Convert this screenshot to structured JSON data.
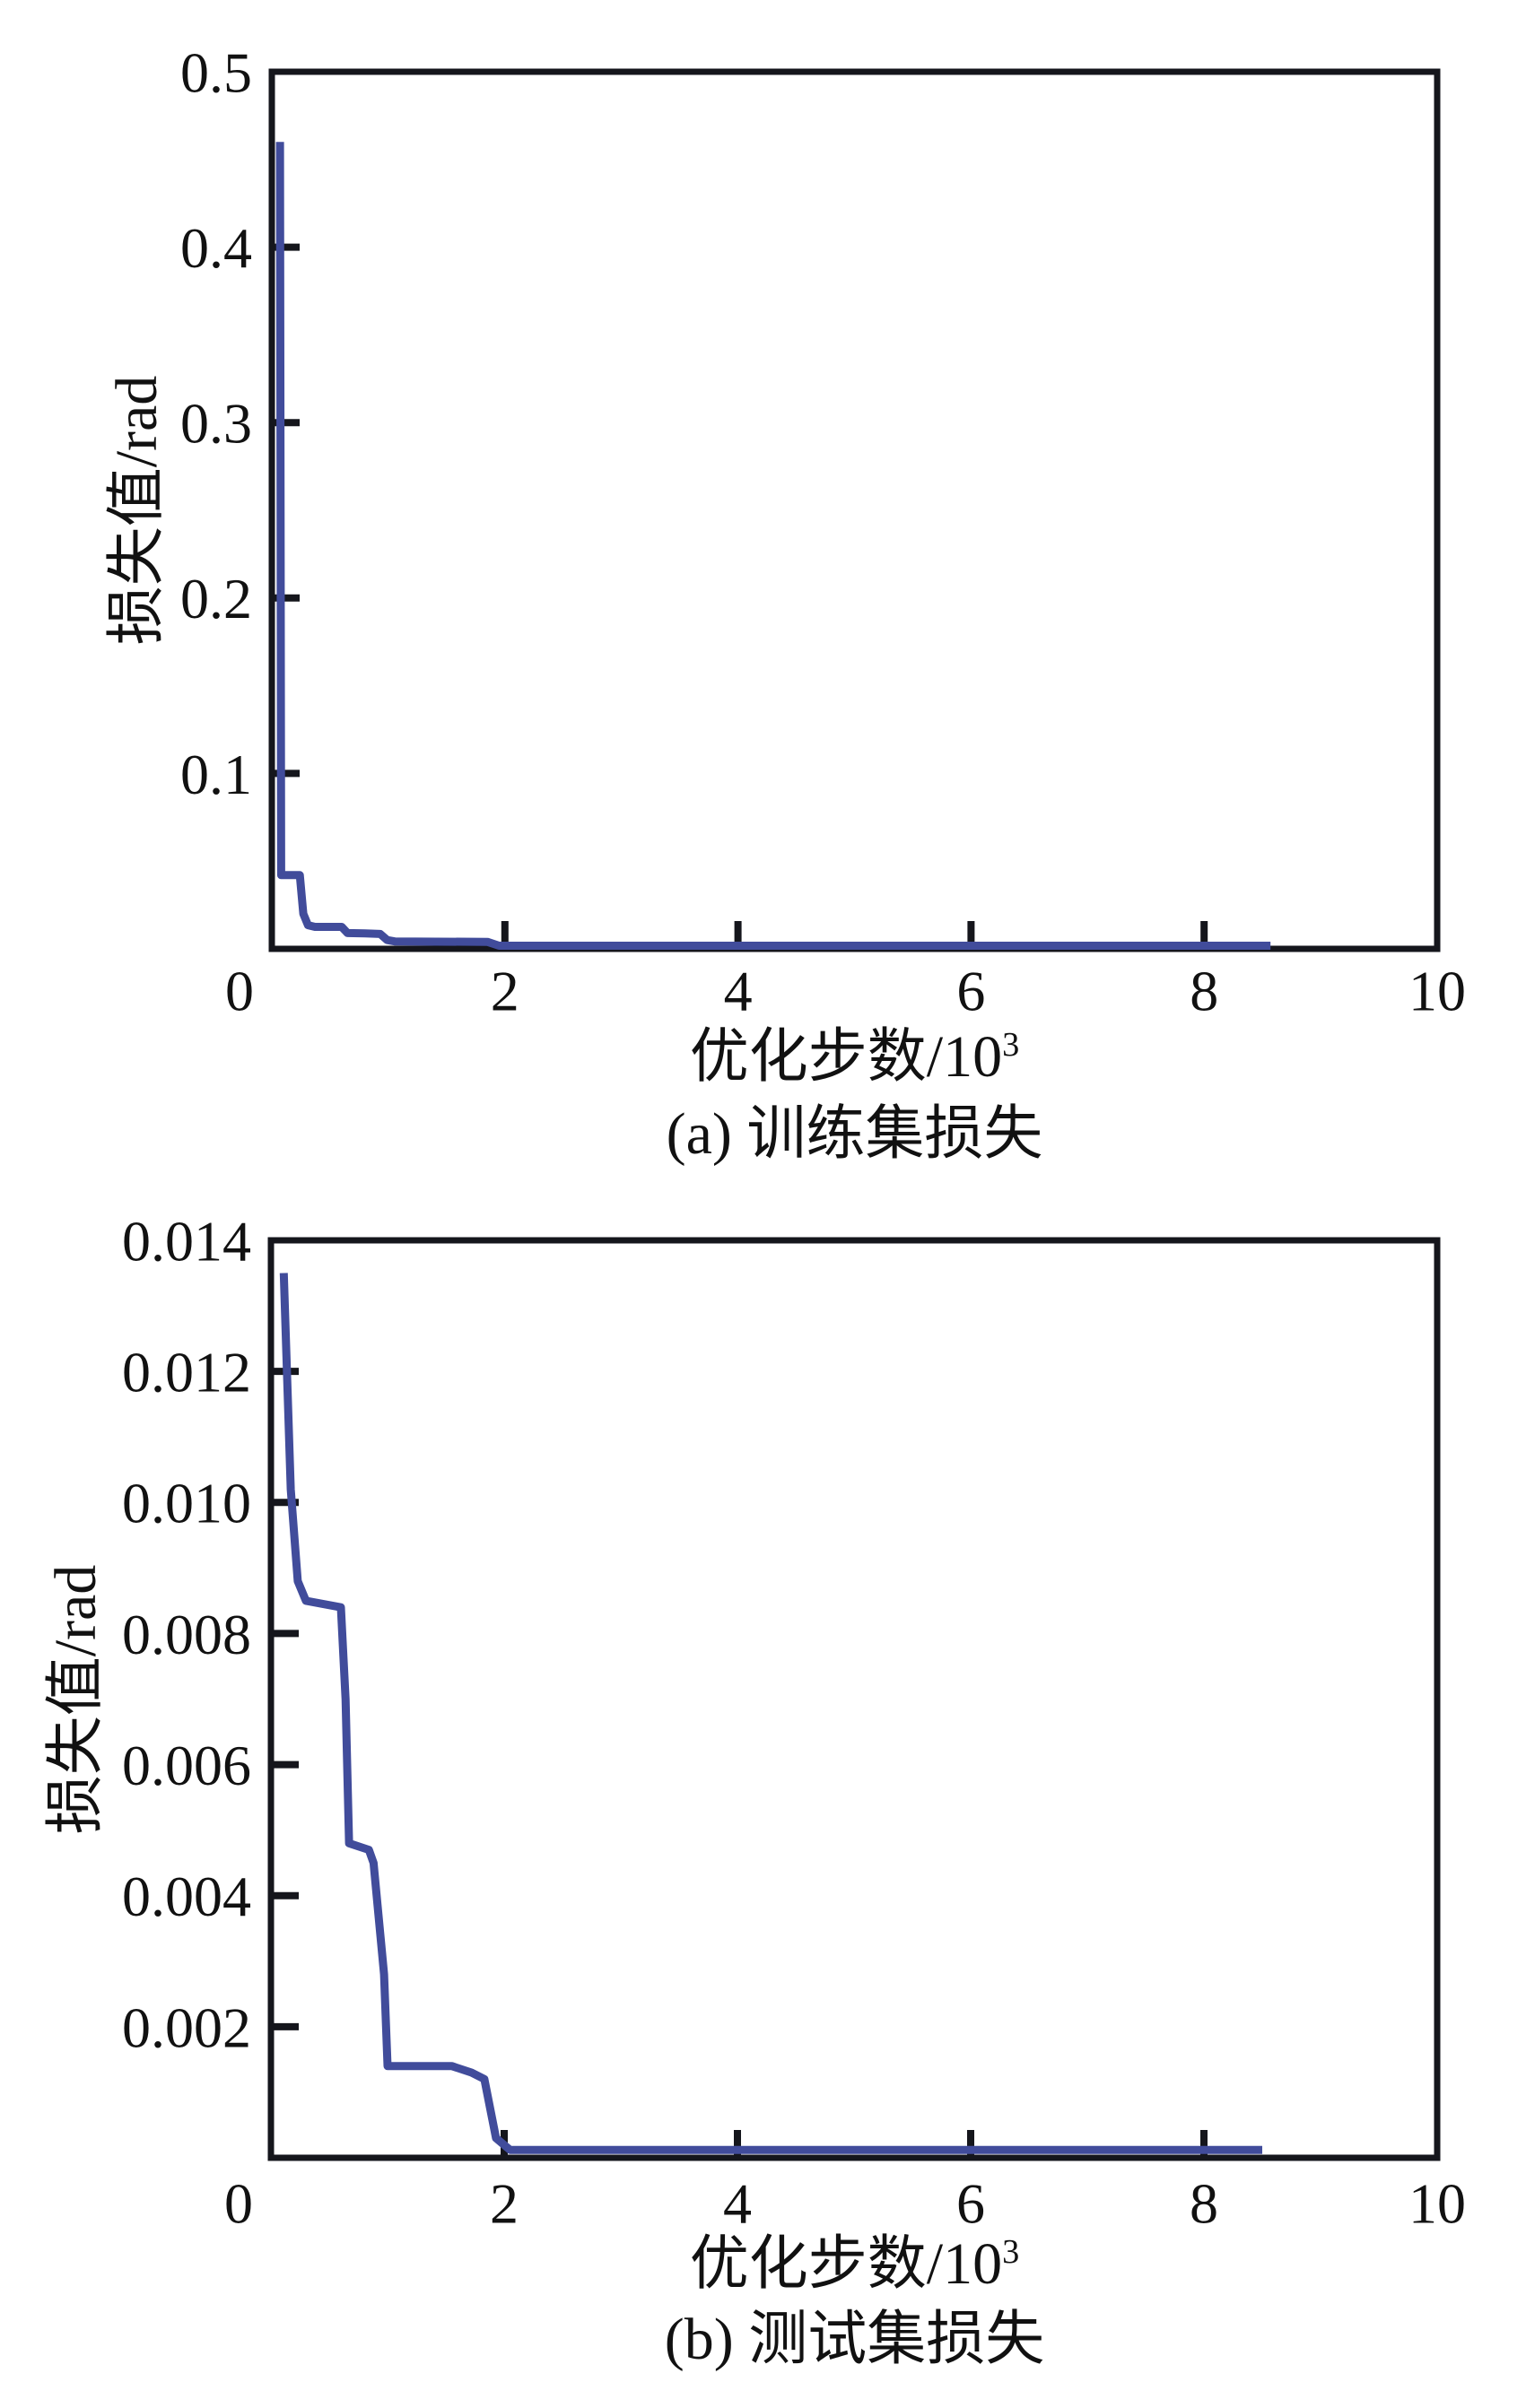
{
  "figure": {
    "background": "#ffffff",
    "text_color": "#111111"
  },
  "chart_data": [
    {
      "id": "train-loss",
      "type": "line",
      "caption": "(a) 训练集损失",
      "xlabel": "优化步数/10",
      "xlabel_sup": "3",
      "ylabel": "损失值/rad",
      "xlim": [
        0,
        10
      ],
      "ylim": [
        0,
        0.5
      ],
      "grid": false,
      "legend": null,
      "axis_color": "#15161c",
      "line_color": "#414c9b",
      "x_ticks": [
        {
          "v": 0,
          "label": "0",
          "ldx": -36
        },
        {
          "v": 2,
          "label": "2"
        },
        {
          "v": 4,
          "label": "4"
        },
        {
          "v": 6,
          "label": "6"
        },
        {
          "v": 8,
          "label": "8"
        },
        {
          "v": 10,
          "label": "10"
        }
      ],
      "y_ticks": [
        {
          "v": 0.1,
          "label": "0.1"
        },
        {
          "v": 0.2,
          "label": "0.2"
        },
        {
          "v": 0.3,
          "label": "0.3"
        },
        {
          "v": 0.4,
          "label": "0.4"
        },
        {
          "v": 0.5,
          "label": "0.5"
        }
      ],
      "points": [
        [
          0.07,
          0.46
        ],
        [
          0.08,
          0.042
        ],
        [
          0.24,
          0.042
        ],
        [
          0.27,
          0.02
        ],
        [
          0.31,
          0.0135
        ],
        [
          0.37,
          0.0125
        ],
        [
          0.6,
          0.0125
        ],
        [
          0.65,
          0.009
        ],
        [
          0.8,
          0.0088
        ],
        [
          0.93,
          0.0085
        ],
        [
          0.99,
          0.005
        ],
        [
          1.06,
          0.0042
        ],
        [
          1.85,
          0.004
        ],
        [
          1.95,
          0.0018
        ],
        [
          8.57,
          0.0018
        ]
      ]
    },
    {
      "id": "test-loss",
      "type": "line",
      "caption": "(b) 测试集损失",
      "xlabel": "优化步数/10",
      "xlabel_sup": "3",
      "ylabel": "损失值/rad",
      "xlim": [
        0,
        10
      ],
      "ylim": [
        0,
        0.014
      ],
      "grid": false,
      "legend": null,
      "axis_color": "#15161c",
      "line_color": "#414c9b",
      "x_ticks": [
        {
          "v": 0,
          "label": "0",
          "ldx": -36
        },
        {
          "v": 2,
          "label": "2"
        },
        {
          "v": 4,
          "label": "4"
        },
        {
          "v": 6,
          "label": "6"
        },
        {
          "v": 8,
          "label": "8"
        },
        {
          "v": 10,
          "label": "10"
        }
      ],
      "y_ticks": [
        {
          "v": 0.002,
          "label": "0.002"
        },
        {
          "v": 0.004,
          "label": "0.004"
        },
        {
          "v": 0.006,
          "label": "0.006"
        },
        {
          "v": 0.008,
          "label": "0.008"
        },
        {
          "v": 0.01,
          "label": "0.010"
        },
        {
          "v": 0.012,
          "label": "0.012"
        },
        {
          "v": 0.014,
          "label": "0.014"
        }
      ],
      "points": [
        [
          0.11,
          0.0135
        ],
        [
          0.17,
          0.0102
        ],
        [
          0.23,
          0.0088
        ],
        [
          0.3,
          0.0085
        ],
        [
          0.6,
          0.0084
        ],
        [
          0.64,
          0.007
        ],
        [
          0.67,
          0.0048
        ],
        [
          0.84,
          0.0047
        ],
        [
          0.88,
          0.0045
        ],
        [
          0.97,
          0.0028
        ],
        [
          1.0,
          0.0014
        ],
        [
          1.55,
          0.0014
        ],
        [
          1.72,
          0.0013
        ],
        [
          1.83,
          0.0012
        ],
        [
          1.93,
          0.0003
        ],
        [
          2.05,
          0.00012
        ],
        [
          8.5,
          0.00012
        ]
      ]
    }
  ]
}
